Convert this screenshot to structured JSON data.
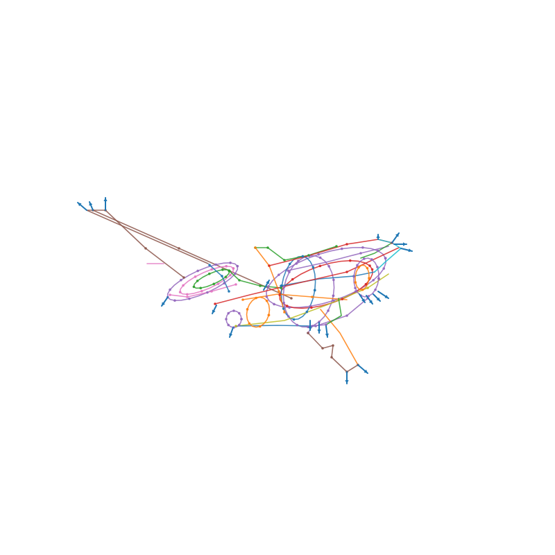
{
  "diagram": {
    "type": "3d-wireframe-curve-network",
    "background": "#ffffff",
    "colors": {
      "blue": "#1f77b4",
      "orange": "#ff7f0e",
      "green": "#2ca02c",
      "red": "#d62728",
      "purple": "#9467bd",
      "brown": "#8c564b",
      "pink": "#e377c2",
      "cyan": "#17becf",
      "node": "#6a4c93",
      "arrow": "#1f77b4"
    },
    "icons": [
      "arrowhead-icon"
    ]
  }
}
